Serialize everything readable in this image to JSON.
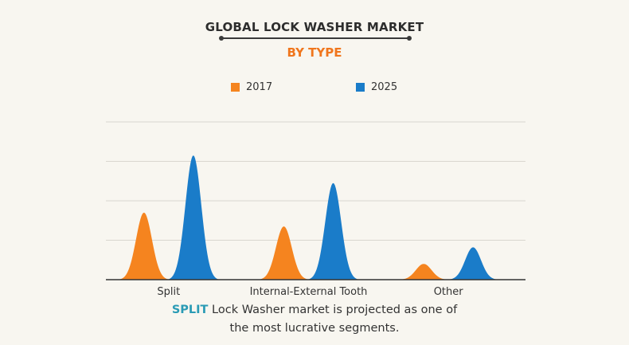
{
  "header": {
    "title": "GLOBAL LOCK WASHER MARKET",
    "subtitle": "BY TYPE"
  },
  "caption": {
    "highlight": "SPLIT",
    "line1_rest": " Lock Washer market is projected as one of",
    "line2": "the most lucrative segments."
  },
  "colors": {
    "s2017": "#f5841f",
    "s2025": "#1a7cc9",
    "grid": "#d9d6cf",
    "axis": "#333333",
    "highlight": "#2a9bb5",
    "subtitle": "#f0761d"
  },
  "chart_data": {
    "type": "area",
    "title": "GLOBAL LOCK WASHER MARKET",
    "subtitle": "BY TYPE",
    "categories": [
      "Split",
      "Internal-External Tooth",
      "Other"
    ],
    "series": [
      {
        "name": "2017",
        "values": [
          1.7,
          1.35,
          0.4
        ],
        "color": "#f5841f"
      },
      {
        "name": "2025",
        "values": [
          3.15,
          2.45,
          0.82
        ],
        "color": "#1a7cc9"
      }
    ],
    "ylim": [
      0,
      4
    ],
    "grid": true,
    "legend": "top-center",
    "xlabel": "",
    "ylabel": ""
  }
}
